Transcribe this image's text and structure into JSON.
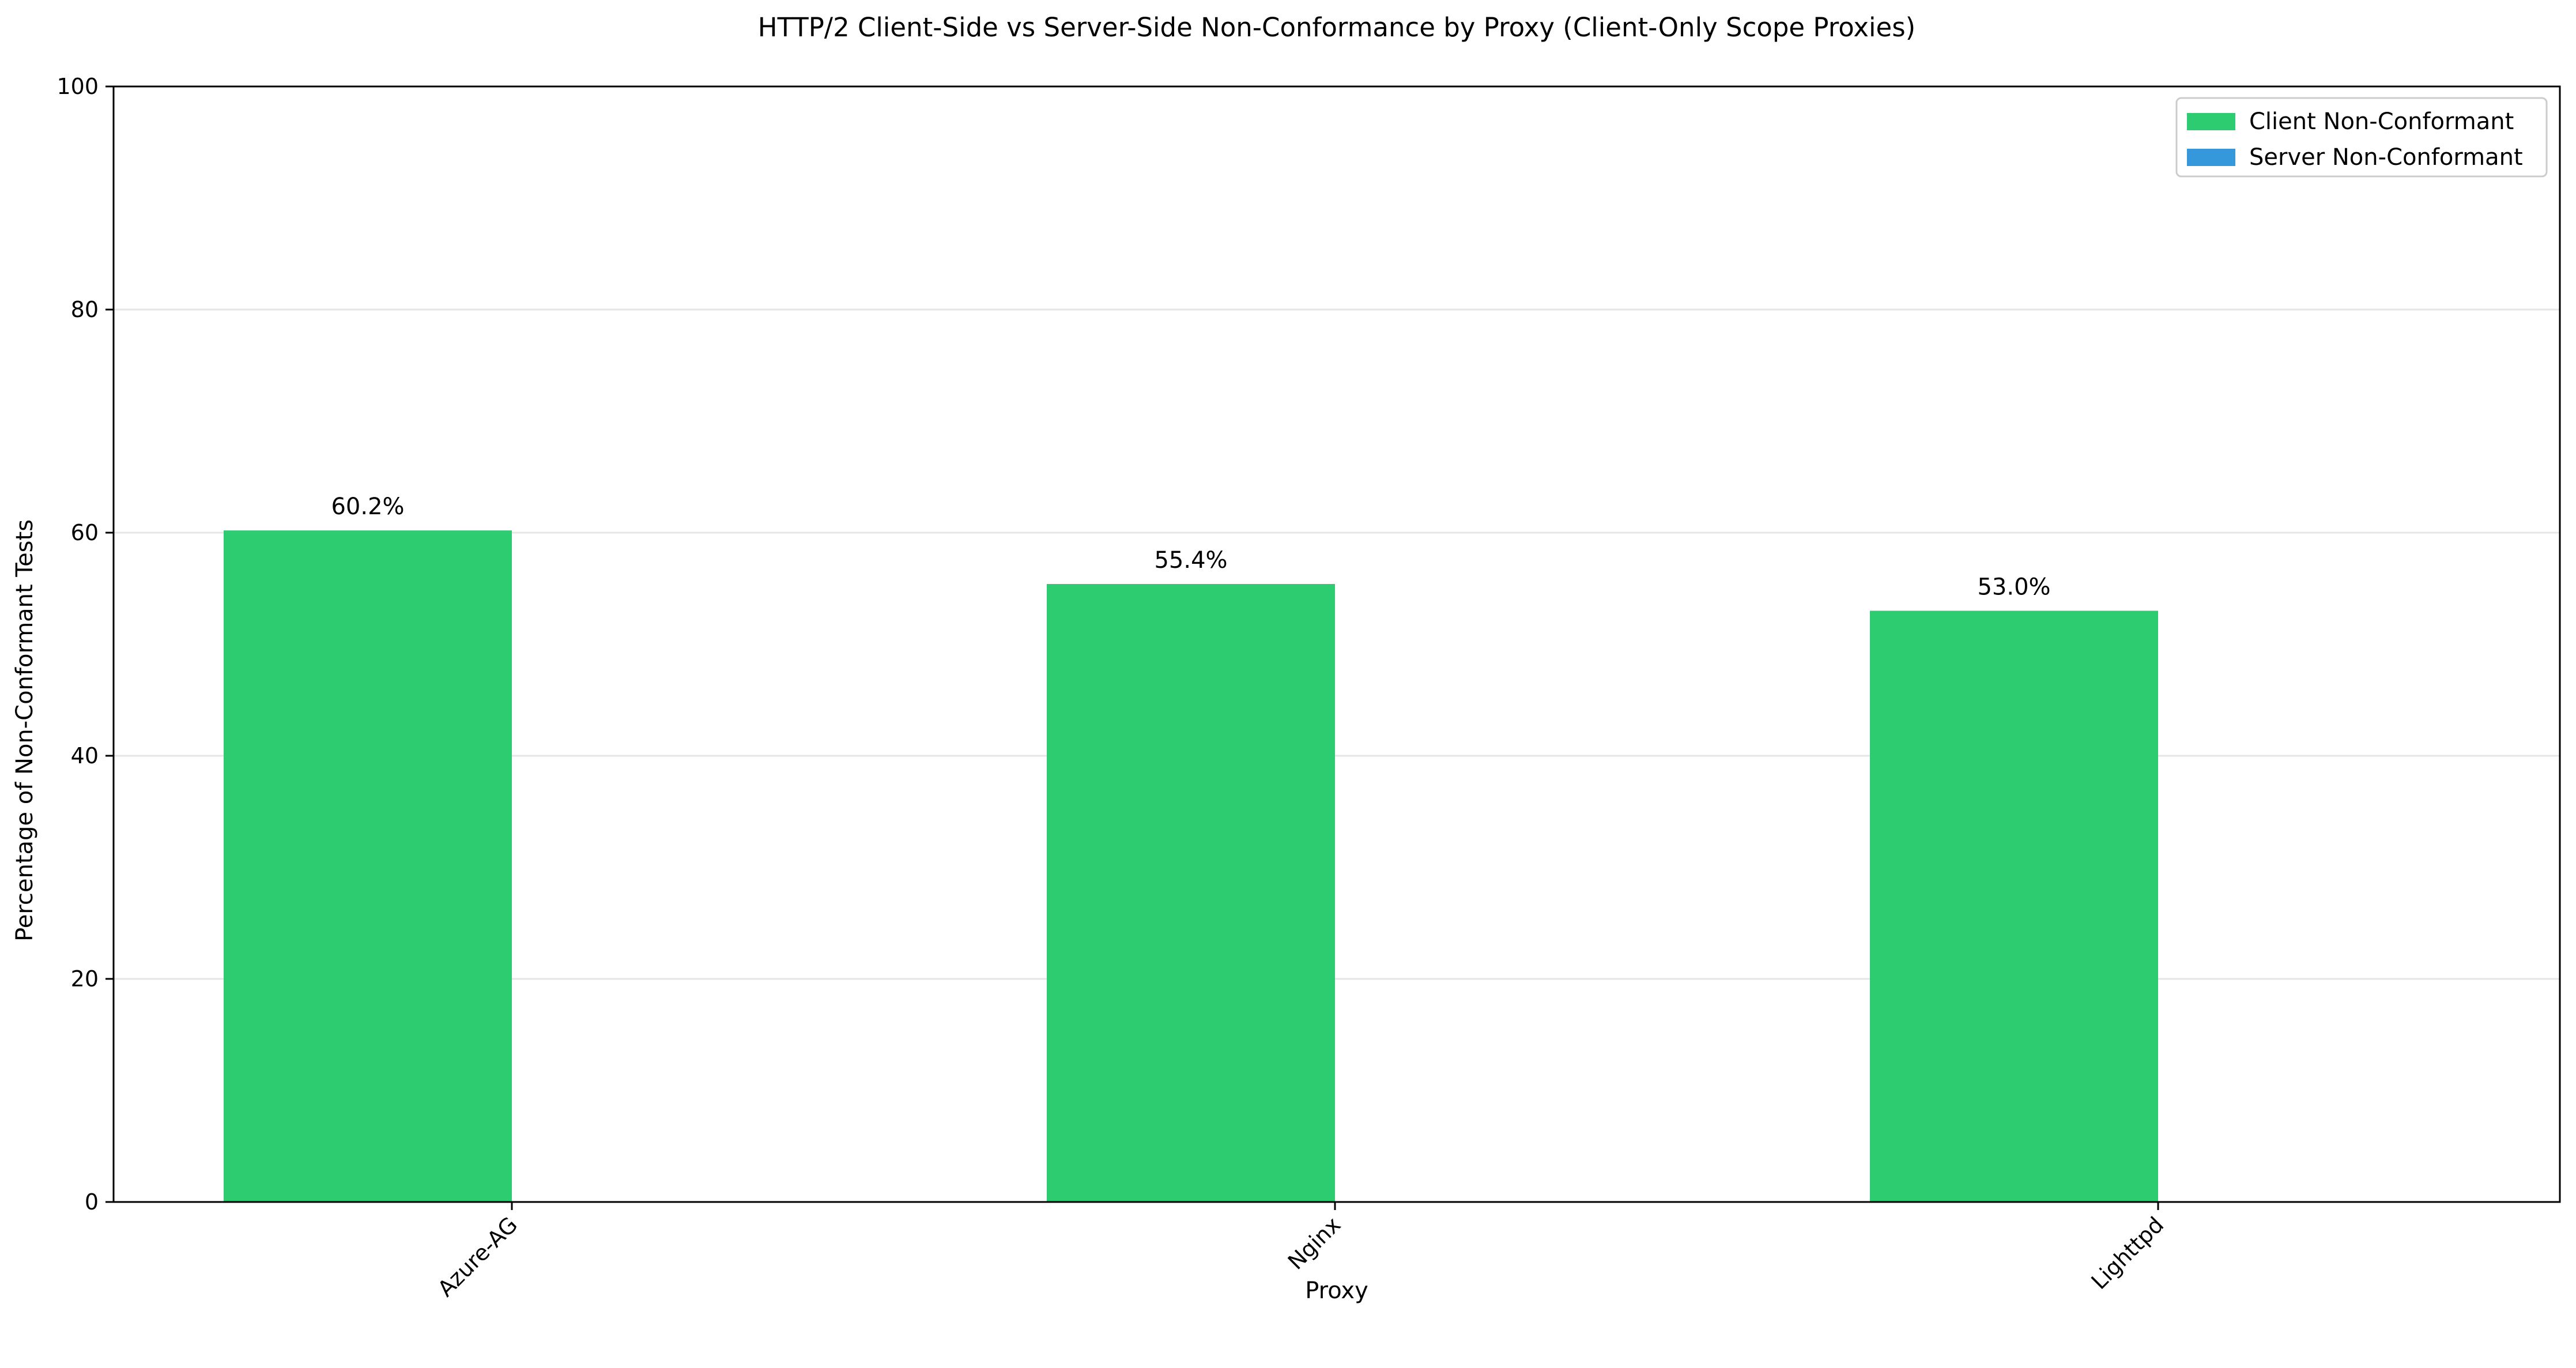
{
  "chart_data": {
    "type": "bar",
    "title": "HTTP/2 Client-Side vs Server-Side Non-Conformance by Proxy (Client-Only Scope Proxies)",
    "xlabel": "Proxy",
    "ylabel": "Percentage of Non-Conformant Tests",
    "categories": [
      "Azure-AG",
      "Nginx",
      "Lighttpd"
    ],
    "series": [
      {
        "name": "Client Non-Conformant",
        "values": [
          60.2,
          55.4,
          53.0
        ],
        "color": "#2ecc71"
      },
      {
        "name": "Server Non-Conformant",
        "values": [
          0,
          0,
          0
        ],
        "color": "#3498db"
      }
    ],
    "data_labels": [
      "60.2%",
      "55.4%",
      "53.0%"
    ],
    "ylim": [
      0,
      100
    ],
    "yticks": [
      0,
      20,
      40,
      60,
      80,
      100
    ],
    "ytick_labels": [
      "0",
      "20",
      "40",
      "60",
      "80",
      "100"
    ],
    "grid": "y-axis",
    "grid_color": "#e6e6e6",
    "legend_position": "top-right",
    "xtick_rotation": "45 degrees"
  }
}
